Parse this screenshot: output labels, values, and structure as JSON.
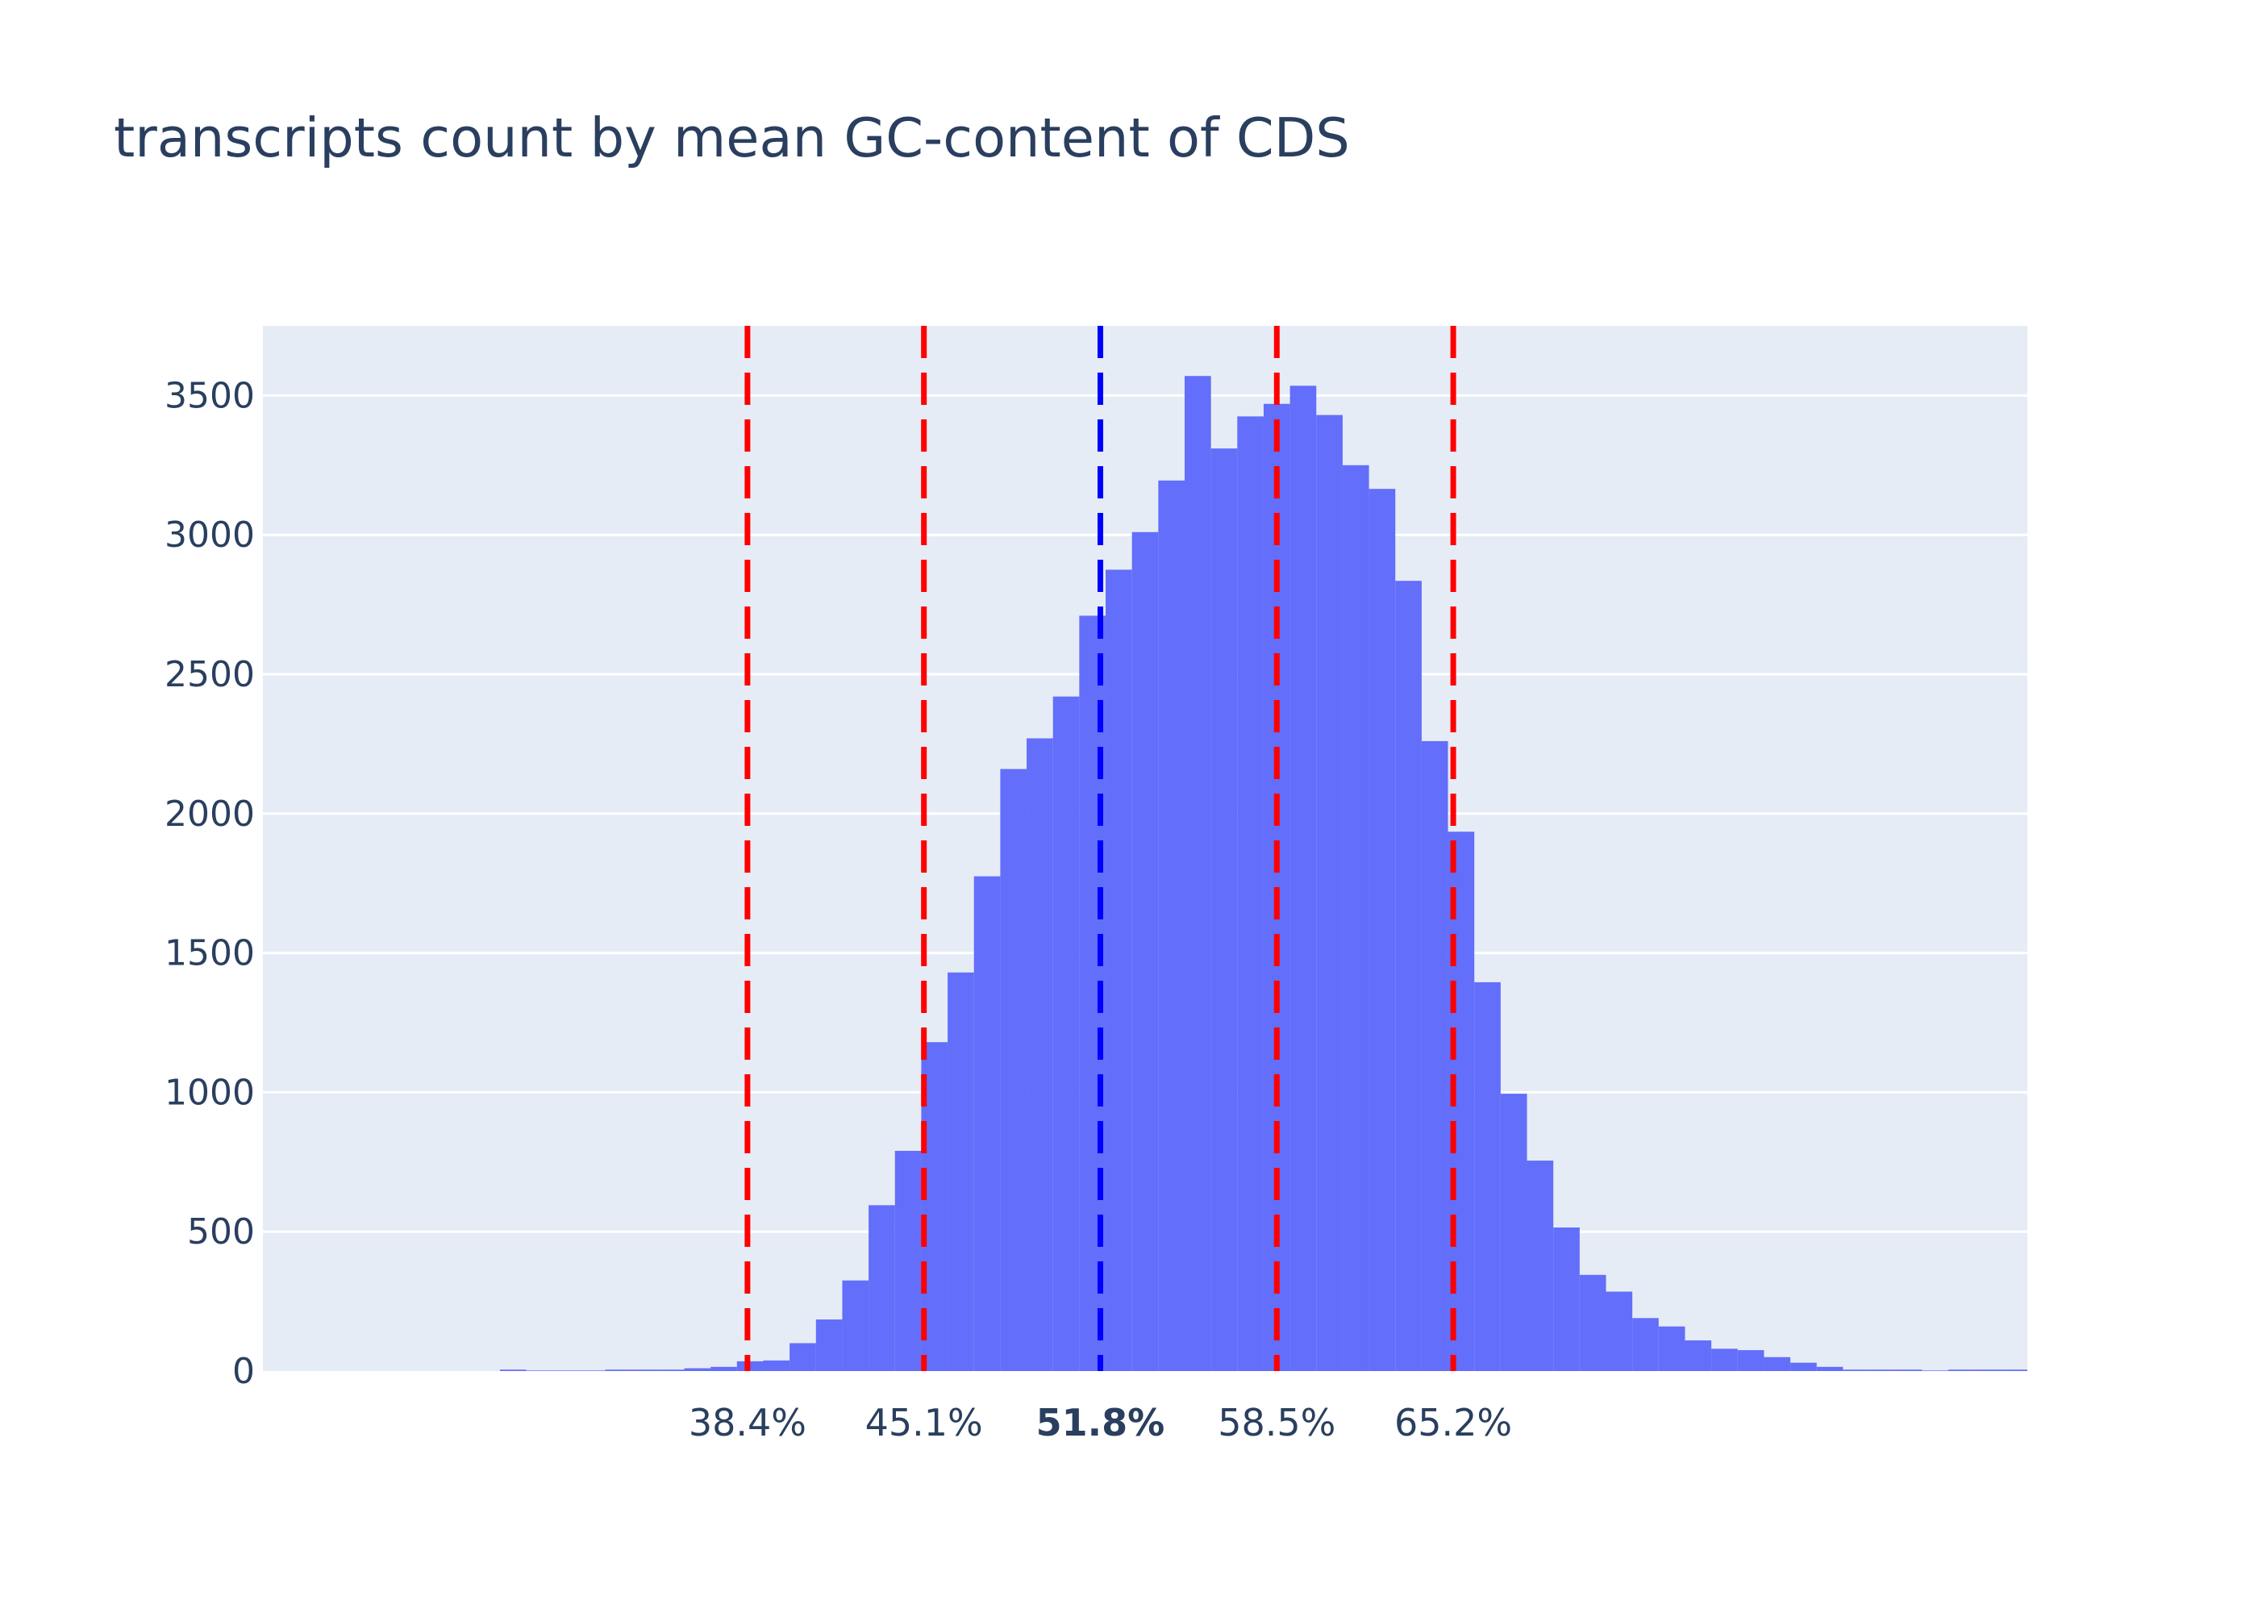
{
  "chart_data": {
    "type": "bar",
    "title": "transcripts count by mean GC-content of CDS",
    "xlabel": "",
    "ylabel": "",
    "x_range": [
      20.0,
      87.0
    ],
    "ylim": [
      0,
      3750
    ],
    "y_ticks": [
      0,
      500,
      1000,
      1500,
      2000,
      2500,
      3000,
      3500
    ],
    "grid": true,
    "bin_width": 1.0,
    "bins_start": [
      20,
      21,
      22,
      23,
      24,
      25,
      26,
      27,
      28,
      29,
      30,
      31,
      32,
      33,
      34,
      35,
      36,
      37,
      38,
      39,
      40,
      41,
      42,
      43,
      44,
      45,
      46,
      47,
      48,
      49,
      50,
      51,
      52,
      53,
      54,
      55,
      56,
      57,
      58,
      59,
      60,
      61,
      62,
      63,
      64,
      65,
      66,
      67,
      68,
      69,
      70,
      71,
      72,
      73,
      74,
      75,
      76,
      77,
      78,
      79,
      80,
      81,
      82,
      83,
      84,
      85,
      86
    ],
    "values": [
      0,
      0,
      0,
      0,
      0,
      0,
      0,
      0,
      0,
      5,
      2,
      2,
      2,
      5,
      5,
      5,
      10,
      15,
      35,
      38,
      100,
      185,
      325,
      595,
      790,
      1180,
      1430,
      1775,
      2160,
      2270,
      2420,
      2710,
      2875,
      3010,
      3195,
      3570,
      3310,
      3425,
      3470,
      3535,
      3430,
      3250,
      3165,
      2835,
      2260,
      1935,
      1395,
      995,
      755,
      515,
      345,
      285,
      190,
      160,
      110,
      80,
      75,
      50,
      30,
      15,
      5,
      5,
      5,
      2,
      5,
      5,
      5
    ],
    "vlines": [
      {
        "x": 38.4,
        "label": "38.4%",
        "color": "#ff0000",
        "bold": false
      },
      {
        "x": 45.1,
        "label": "45.1%",
        "color": "#ff0000",
        "bold": false
      },
      {
        "x": 51.8,
        "label": "51.8%",
        "color": "#0000ff",
        "bold": true
      },
      {
        "x": 58.5,
        "label": "58.5%",
        "color": "#ff0000",
        "bold": false
      },
      {
        "x": 65.2,
        "label": "65.2%",
        "color": "#ff0000",
        "bold": false
      }
    ],
    "colors": {
      "bar": "#636efa",
      "plot_bg": "#e5ecf6",
      "grid": "#ffffff",
      "text": "#2a3f5f"
    }
  }
}
